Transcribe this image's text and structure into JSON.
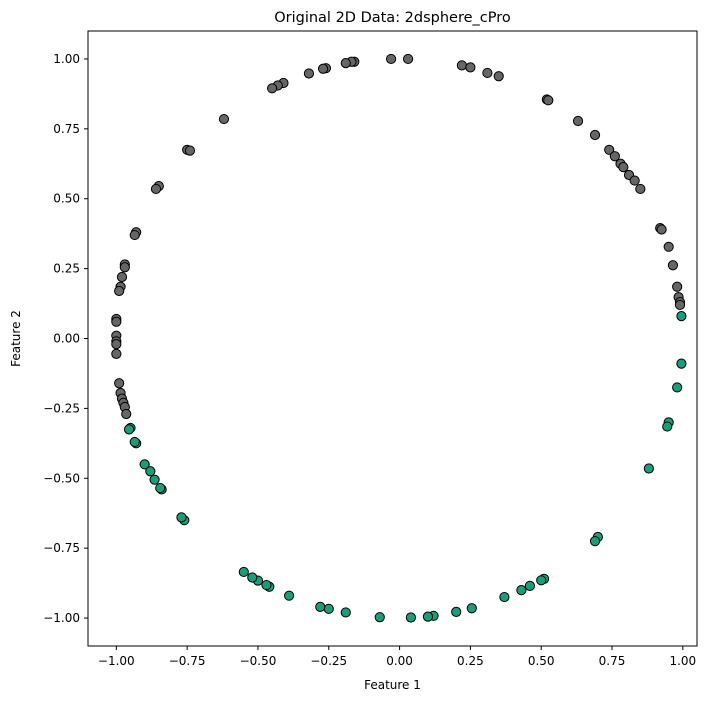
{
  "chart_data": {
    "type": "scatter",
    "title": "Original 2D Data: 2dsphere_cPro",
    "xlabel": "Feature 1",
    "ylabel": "Feature 2",
    "xlim": [
      -1.1,
      1.05
    ],
    "ylim": [
      -1.1,
      1.1
    ],
    "xticks": [
      -1.0,
      -0.75,
      -0.5,
      -0.25,
      0.0,
      0.25,
      0.5,
      0.75,
      1.0
    ],
    "xtick_labels": [
      "−1.00",
      "−0.75",
      "−0.50",
      "−0.25",
      "0.00",
      "0.25",
      "0.50",
      "0.75",
      "1.00"
    ],
    "yticks": [
      -1.0,
      -0.75,
      -0.5,
      -0.25,
      0.0,
      0.25,
      0.5,
      0.75,
      1.0
    ],
    "ytick_labels": [
      "−1.00",
      "−0.75",
      "−0.50",
      "−0.25",
      "0.00",
      "0.25",
      "0.50",
      "0.75",
      "1.00"
    ],
    "grid": false,
    "colors": {
      "class_a": "#666666",
      "class_b": "#1b9e77",
      "edge": "#000000"
    },
    "series": [
      {
        "color_key": "class_a",
        "points": [
          [
            -0.03,
            1.0
          ],
          [
            0.03,
            1.0
          ],
          [
            -0.16,
            0.99
          ],
          [
            -0.17,
            0.99
          ],
          [
            -0.19,
            0.985
          ],
          [
            -0.26,
            0.967
          ],
          [
            -0.27,
            0.965
          ],
          [
            -0.32,
            0.948
          ],
          [
            -0.41,
            0.914
          ],
          [
            -0.43,
            0.905
          ],
          [
            -0.45,
            0.895
          ],
          [
            -0.62,
            0.785
          ],
          [
            -0.75,
            0.675
          ],
          [
            -0.74,
            0.672
          ],
          [
            -0.85,
            0.545
          ],
          [
            -0.86,
            0.535
          ],
          [
            -0.93,
            0.38
          ],
          [
            -0.935,
            0.37
          ],
          [
            -0.97,
            0.265
          ],
          [
            -0.97,
            0.255
          ],
          [
            -0.98,
            0.22
          ],
          [
            -0.985,
            0.185
          ],
          [
            -0.99,
            0.17
          ],
          [
            -1.0,
            0.07
          ],
          [
            -1.0,
            0.06
          ],
          [
            -1.0,
            0.01
          ],
          [
            -1.0,
            -0.01
          ],
          [
            -1.0,
            -0.02
          ],
          [
            -1.0,
            -0.055
          ],
          [
            -0.99,
            -0.16
          ],
          [
            -0.985,
            -0.195
          ],
          [
            -0.98,
            -0.215
          ],
          [
            -0.975,
            -0.23
          ],
          [
            -0.97,
            -0.245
          ],
          [
            -0.965,
            -0.27
          ],
          [
            0.22,
            0.977
          ],
          [
            0.25,
            0.97
          ],
          [
            0.31,
            0.95
          ],
          [
            0.35,
            0.938
          ],
          [
            0.52,
            0.855
          ],
          [
            0.525,
            0.852
          ],
          [
            0.63,
            0.778
          ],
          [
            0.69,
            0.728
          ],
          [
            0.74,
            0.675
          ],
          [
            0.76,
            0.652
          ],
          [
            0.78,
            0.625
          ],
          [
            0.79,
            0.613
          ],
          [
            0.81,
            0.585
          ],
          [
            0.83,
            0.565
          ],
          [
            0.85,
            0.535
          ],
          [
            0.92,
            0.395
          ],
          [
            0.925,
            0.39
          ],
          [
            0.95,
            0.328
          ],
          [
            0.965,
            0.262
          ],
          [
            0.98,
            0.185
          ],
          [
            0.985,
            0.148
          ],
          [
            0.99,
            0.13
          ],
          [
            0.99,
            0.12
          ]
        ]
      },
      {
        "color_key": "class_b",
        "points": [
          [
            0.995,
            0.08
          ],
          [
            0.995,
            -0.09
          ],
          [
            0.98,
            -0.175
          ],
          [
            0.95,
            -0.3
          ],
          [
            0.945,
            -0.315
          ],
          [
            0.88,
            -0.465
          ],
          [
            0.7,
            -0.71
          ],
          [
            0.69,
            -0.725
          ],
          [
            0.51,
            -0.86
          ],
          [
            0.5,
            -0.865
          ],
          [
            0.46,
            -0.885
          ],
          [
            0.43,
            -0.9
          ],
          [
            0.37,
            -0.925
          ],
          [
            0.255,
            -0.965
          ],
          [
            0.2,
            -0.978
          ],
          [
            0.12,
            -0.992
          ],
          [
            0.1,
            -0.995
          ],
          [
            0.04,
            -0.998
          ],
          [
            -0.07,
            -0.997
          ],
          [
            -0.19,
            -0.98
          ],
          [
            -0.25,
            -0.967
          ],
          [
            -0.28,
            -0.96
          ],
          [
            -0.39,
            -0.92
          ],
          [
            -0.46,
            -0.888
          ],
          [
            -0.47,
            -0.882
          ],
          [
            -0.5,
            -0.866
          ],
          [
            -0.52,
            -0.855
          ],
          [
            -0.55,
            -0.835
          ],
          [
            -0.76,
            -0.65
          ],
          [
            -0.77,
            -0.64
          ],
          [
            -0.84,
            -0.54
          ],
          [
            -0.845,
            -0.535
          ],
          [
            -0.88,
            -0.475
          ],
          [
            -0.865,
            -0.505
          ],
          [
            -0.9,
            -0.45
          ],
          [
            -0.93,
            -0.375
          ],
          [
            -0.935,
            -0.37
          ],
          [
            -0.95,
            -0.32
          ],
          [
            -0.955,
            -0.325
          ]
        ]
      }
    ]
  }
}
